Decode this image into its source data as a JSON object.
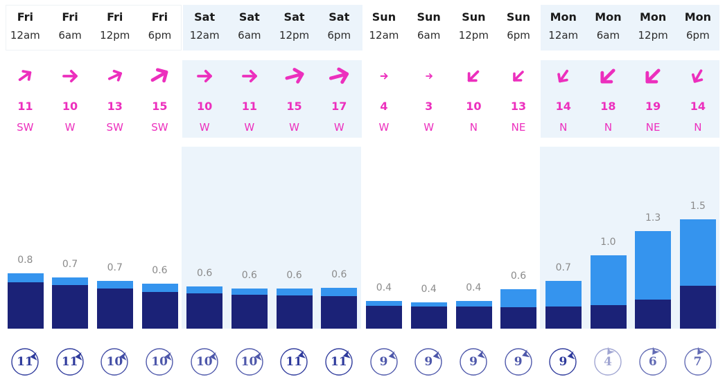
{
  "colors": {
    "wind": "#ec2fbd",
    "swell_primary": "#1b2277",
    "swell_secondary": "#3594ee",
    "panel_bg": "#ecf4fb",
    "period": "#2e3a9c",
    "bar_label": "#8a8a8a"
  },
  "columns": [
    {
      "day": "Fri",
      "time": "12am",
      "wind_speed": "11",
      "wind_dir": "SW",
      "wave_height": "0.8",
      "period": "11"
    },
    {
      "day": "Fri",
      "time": "6am",
      "wind_speed": "10",
      "wind_dir": "W",
      "wave_height": "0.7",
      "period": "11"
    },
    {
      "day": "Fri",
      "time": "12pm",
      "wind_speed": "13",
      "wind_dir": "SW",
      "wave_height": "0.7",
      "period": "10"
    },
    {
      "day": "Fri",
      "time": "6pm",
      "wind_speed": "15",
      "wind_dir": "SW",
      "wave_height": "0.6",
      "period": "10"
    },
    {
      "day": "Sat",
      "time": "12am",
      "wind_speed": "10",
      "wind_dir": "W",
      "wave_height": "0.6",
      "period": "10"
    },
    {
      "day": "Sat",
      "time": "6am",
      "wind_speed": "11",
      "wind_dir": "W",
      "wave_height": "0.6",
      "period": "10"
    },
    {
      "day": "Sat",
      "time": "12pm",
      "wind_speed": "15",
      "wind_dir": "W",
      "wave_height": "0.6",
      "period": "11"
    },
    {
      "day": "Sat",
      "time": "6pm",
      "wind_speed": "17",
      "wind_dir": "W",
      "wave_height": "0.6",
      "period": "11"
    },
    {
      "day": "Sun",
      "time": "12am",
      "wind_speed": "4",
      "wind_dir": "W",
      "wave_height": "0.4",
      "period": "9"
    },
    {
      "day": "Sun",
      "time": "6am",
      "wind_speed": "3",
      "wind_dir": "W",
      "wave_height": "0.4",
      "period": "9"
    },
    {
      "day": "Sun",
      "time": "12pm",
      "wind_speed": "10",
      "wind_dir": "N",
      "wave_height": "0.4",
      "period": "9"
    },
    {
      "day": "Sun",
      "time": "6pm",
      "wind_speed": "13",
      "wind_dir": "NE",
      "wave_height": "0.6",
      "period": "9"
    },
    {
      "day": "Mon",
      "time": "12am",
      "wind_speed": "14",
      "wind_dir": "N",
      "wave_height": "0.7",
      "period": "9"
    },
    {
      "day": "Mon",
      "time": "6am",
      "wind_speed": "18",
      "wind_dir": "N",
      "wave_height": "1.0",
      "period": "4"
    },
    {
      "day": "Mon",
      "time": "12pm",
      "wind_speed": "19",
      "wind_dir": "NE",
      "wave_height": "1.3",
      "period": "6"
    },
    {
      "day": "Mon",
      "time": "6pm",
      "wind_speed": "14",
      "wind_dir": "N",
      "wave_height": "1.5",
      "period": "7"
    }
  ],
  "chart_data": {
    "type": "bar",
    "title": "",
    "xlabel": "",
    "ylabel": "",
    "categories": [
      "Fri 12am",
      "Fri 6am",
      "Fri 12pm",
      "Fri 6pm",
      "Sat 12am",
      "Sat 6am",
      "Sat 12pm",
      "Sat 6pm",
      "Sun 12am",
      "Sun 6am",
      "Sun 12pm",
      "Sun 6pm",
      "Mon 12am",
      "Mon 6am",
      "Mon 12pm",
      "Mon 6pm"
    ],
    "values": [
      0.8,
      0.7,
      0.7,
      0.6,
      0.6,
      0.6,
      0.6,
      0.6,
      0.4,
      0.4,
      0.4,
      0.6,
      0.7,
      1.0,
      1.3,
      1.5
    ],
    "series": [
      {
        "name": "primary swell (dark)",
        "values": [
          0.67,
          0.63,
          0.58,
          0.53,
          0.51,
          0.49,
          0.48,
          0.47,
          0.33,
          0.32,
          0.32,
          0.31,
          0.32,
          0.34,
          0.42,
          0.62
        ]
      },
      {
        "name": "secondary (light)",
        "values": [
          0.13,
          0.07,
          0.12,
          0.07,
          0.09,
          0.11,
          0.12,
          0.13,
          0.07,
          0.08,
          0.08,
          0.29,
          0.38,
          0.66,
          0.88,
          0.88
        ]
      }
    ],
    "wind_speed": [
      11,
      10,
      13,
      15,
      10,
      11,
      15,
      17,
      4,
      3,
      10,
      13,
      14,
      18,
      19,
      14
    ],
    "wind_direction": [
      "SW",
      "W",
      "SW",
      "SW",
      "W",
      "W",
      "W",
      "W",
      "W",
      "W",
      "N",
      "NE",
      "N",
      "N",
      "NE",
      "N"
    ],
    "period": [
      11,
      11,
      10,
      10,
      10,
      10,
      11,
      11,
      9,
      9,
      9,
      9,
      9,
      4,
      6,
      7
    ],
    "grid": false,
    "legend": "none"
  }
}
